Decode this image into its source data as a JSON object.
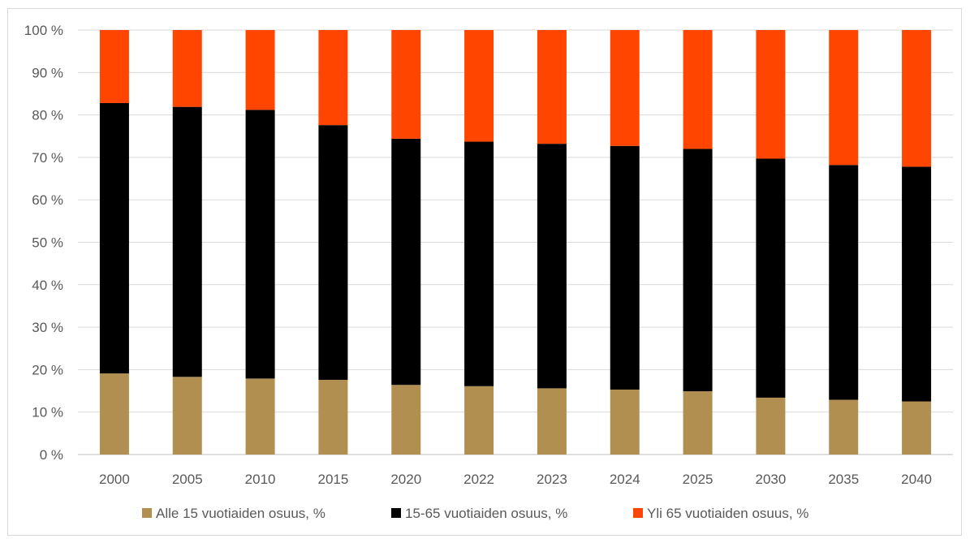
{
  "chart_data": {
    "type": "bar",
    "stacked": true,
    "percent_stacked": true,
    "categories": [
      "2000",
      "2005",
      "2010",
      "2015",
      "2020",
      "2022",
      "2023",
      "2024",
      "2025",
      "2030",
      "2035",
      "2040"
    ],
    "series": [
      {
        "name": "Alle 15 vuotiaiden osuus, %",
        "color": "#B18F51",
        "values": [
          19.1,
          18.3,
          17.9,
          17.6,
          16.4,
          16.1,
          15.6,
          15.3,
          14.9,
          13.4,
          12.9,
          12.5
        ]
      },
      {
        "name": "15-65 vuotiaiden osuus, %",
        "color": "#000000",
        "values": [
          63.7,
          63.6,
          63.3,
          60.0,
          58.0,
          57.6,
          57.6,
          57.4,
          57.1,
          56.3,
          55.3,
          55.3
        ]
      },
      {
        "name": "Yli 65 vuotiaiden osuus, %",
        "color": "#FF4500",
        "values": [
          17.2,
          18.1,
          18.8,
          22.4,
          25.6,
          26.3,
          26.8,
          27.3,
          28.0,
          30.3,
          31.8,
          32.2
        ]
      }
    ],
    "yticks": [
      "0 %",
      "10 %",
      "20 %",
      "30 %",
      "40 %",
      "50 %",
      "60 %",
      "70 %",
      "80 %",
      "90 %",
      "100 %"
    ],
    "ylim": [
      0,
      100
    ],
    "grid": true,
    "legend_position": "bottom",
    "title": "",
    "xlabel": "",
    "ylabel": ""
  }
}
